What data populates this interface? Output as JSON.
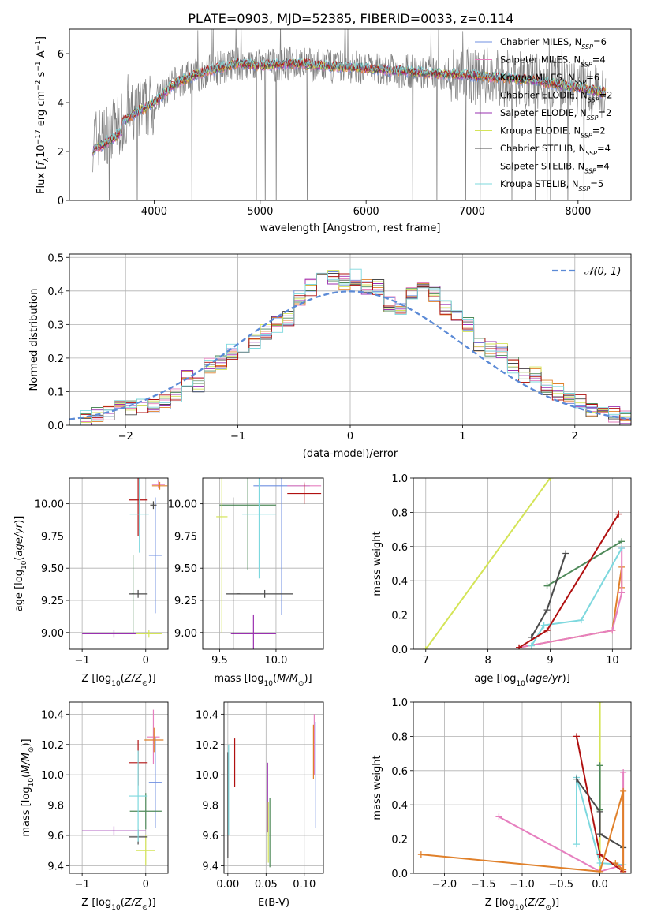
{
  "figure": {
    "title": "PLATE=0903, MJD=52385, FIBERID=0033, z=0.114"
  },
  "chart_data": [
    {
      "type": "line",
      "id": "spectrum",
      "title": "PLATE=0903, MJD=52385, FIBERID=0033, z=0.114",
      "xlabel": "wavelength [Angstrom, rest frame]",
      "ylabel": "Flux [fλ10⁻¹⁷ erg cm⁻² s⁻¹ A⁻¹]",
      "xlim": [
        3200,
        8500
      ],
      "ylim": [
        0,
        7
      ],
      "xticks": [
        "4000",
        "5000",
        "6000",
        "7000",
        "8000"
      ],
      "yticks": [
        "0",
        "2",
        "4",
        "6"
      ],
      "grid": false,
      "legend_position": "top-right",
      "continuum": {
        "wavelength": [
          3400,
          3600,
          3800,
          4000,
          4200,
          4500,
          4800,
          5000,
          5300,
          5600,
          6000,
          6300,
          6600,
          7000,
          7300,
          7600,
          8000,
          8250
        ],
        "flux": [
          2.4,
          2.9,
          3.5,
          4.0,
          4.8,
          5.3,
          5.6,
          5.5,
          5.6,
          5.5,
          5.4,
          5.3,
          5.2,
          5.1,
          5.0,
          4.9,
          4.6,
          4.4
        ]
      },
      "series": [
        {
          "name": "Chabrier MILES, N_SSP=6",
          "color": "#6f8fe0"
        },
        {
          "name": "Salpeter MILES, N_SSP=4",
          "color": "#e67fbf"
        },
        {
          "name": "Kroupa MILES, N_SSP=6",
          "color": "#e0802a"
        },
        {
          "name": "Chabrier ELODIE, N_SSP=2",
          "color": "#4f8a5a"
        },
        {
          "name": "Salpeter ELODIE, N_SSP=2",
          "color": "#9a30b0"
        },
        {
          "name": "Kroupa ELODIE, N_SSP=2",
          "color": "#d4e457"
        },
        {
          "name": "Chabrier STELIB, N_SSP=4",
          "color": "#4a4a4a"
        },
        {
          "name": "Salpeter STELIB, N_SSP=4",
          "color": "#b01010"
        },
        {
          "name": "Kroupa STELIB, N_SSP=5",
          "color": "#7dd8de"
        }
      ],
      "legend_labels": [
        {
          "pre": "Chabrier MILES, N",
          "sub": "SSP",
          "post": "=6"
        },
        {
          "pre": "Salpeter MILES, N",
          "sub": "SSP",
          "post": "=4"
        },
        {
          "pre": "Kroupa MILES, N",
          "sub": "SSP",
          "post": "=6"
        },
        {
          "pre": "Chabrier ELODIE, N",
          "sub": "SSP",
          "post": "=2"
        },
        {
          "pre": "Salpeter ELODIE, N",
          "sub": "SSP",
          "post": "=2"
        },
        {
          "pre": "Kroupa ELODIE, N",
          "sub": "SSP",
          "post": "=2"
        },
        {
          "pre": "Chabrier STELIB, N",
          "sub": "SSP",
          "post": "=4"
        },
        {
          "pre": "Salpeter STELIB, N",
          "sub": "SSP",
          "post": "=4"
        },
        {
          "pre": "Kroupa STELIB, N",
          "sub": "SSP",
          "post": "=5"
        }
      ],
      "data_color": "#808080"
    },
    {
      "type": "line",
      "id": "residuals",
      "xlabel": "(data-model)/error",
      "ylabel": "Normed distribution",
      "xlim": [
        -2.5,
        2.5
      ],
      "ylim": [
        0,
        0.51
      ],
      "xticks": [
        "−2",
        "−1",
        "0",
        "1",
        "2"
      ],
      "yticks": [
        "0.0",
        "0.1",
        "0.2",
        "0.3",
        "0.4",
        "0.5"
      ],
      "grid": true,
      "legend_position": "top-right",
      "reference": {
        "name": "𝒩(0, 1)",
        "color": "#5b8ad6"
      },
      "bin_centers": [
        -2.45,
        -2.35,
        -2.25,
        -2.15,
        -2.05,
        -1.95,
        -1.85,
        -1.75,
        -1.65,
        -1.55,
        -1.45,
        -1.35,
        -1.25,
        -1.15,
        -1.05,
        -0.95,
        -0.85,
        -0.75,
        -0.65,
        -0.55,
        -0.45,
        -0.35,
        -0.25,
        -0.15,
        -0.05,
        0.05,
        0.15,
        0.25,
        0.35,
        0.45,
        0.55,
        0.65,
        0.75,
        0.85,
        0.95,
        1.05,
        1.15,
        1.25,
        1.35,
        1.45,
        1.55,
        1.65,
        1.75,
        1.85,
        1.95,
        2.05,
        2.15,
        2.25,
        2.35,
        2.45
      ],
      "histogram": [
        0.02,
        0.02,
        0.03,
        0.04,
        0.05,
        0.05,
        0.06,
        0.06,
        0.07,
        0.09,
        0.14,
        0.12,
        0.18,
        0.19,
        0.22,
        0.22,
        0.25,
        0.28,
        0.3,
        0.32,
        0.38,
        0.41,
        0.46,
        0.44,
        0.43,
        0.44,
        0.41,
        0.41,
        0.36,
        0.35,
        0.4,
        0.42,
        0.39,
        0.35,
        0.32,
        0.3,
        0.24,
        0.23,
        0.22,
        0.18,
        0.15,
        0.15,
        0.11,
        0.1,
        0.08,
        0.07,
        0.05,
        0.04,
        0.03,
        0.02
      ]
    },
    {
      "type": "scatter",
      "id": "age-vs-Z",
      "xlabel": "Z [log10(Z/Z⊙)]",
      "ylabel": "age [log10(age/yr)]",
      "xlim": [
        -1.2,
        0.35
      ],
      "ylim": [
        8.87,
        10.2
      ],
      "xticks": [
        "−1",
        "0"
      ],
      "yticks": [
        "9.00",
        "9.25",
        "9.50",
        "9.75",
        "10.00"
      ],
      "grid": true,
      "points": [
        {
          "color": "#6f8fe0",
          "x": 0.15,
          "xerr": 0.1,
          "y": 9.6,
          "yerr": 0.45
        },
        {
          "color": "#e67fbf",
          "x": 0.2,
          "xerr": 0.1,
          "y": 10.15,
          "yerr": 0.03
        },
        {
          "color": "#e0802a",
          "x": 0.22,
          "xerr": 0.12,
          "y": 10.14,
          "yerr": 0.03
        },
        {
          "color": "#4f8a5a",
          "x": -0.2,
          "xerr": 0.02,
          "y": 9.3,
          "yerr": 0.3
        },
        {
          "color": "#9a30b0",
          "x": -0.5,
          "xerr": 0.5,
          "y": 8.99,
          "yerr": 0.03
        },
        {
          "color": "#d4e457",
          "x": 0.05,
          "xerr": 0.2,
          "y": 8.99,
          "yerr": 0.03
        },
        {
          "color": "#4a4a4a",
          "x": -0.12,
          "xerr": 0.15,
          "y": 9.3,
          "yerr": 0.03
        },
        {
          "color": "#b01010",
          "x": -0.12,
          "xerr": 0.15,
          "y": 10.03,
          "yerr": 0.28
        },
        {
          "color": "#7dd8de",
          "x": -0.1,
          "xerr": 0.15,
          "y": 9.92,
          "yerr": 0.3
        },
        {
          "color": "#4a4a4a",
          "x": 0.12,
          "xerr": 0.05,
          "y": 9.99,
          "yerr": 0.03
        }
      ]
    },
    {
      "type": "scatter",
      "id": "age-vs-mass",
      "xlabel": "mass [log10(M/M⊙)]",
      "ylabel": "",
      "xlim": [
        9.35,
        10.42
      ],
      "ylim": [
        8.87,
        10.2
      ],
      "xticks": [
        "9.5",
        "10.0"
      ],
      "yticks": [
        "9.00",
        "9.25",
        "9.50",
        "9.75",
        "10.00"
      ],
      "grid": true,
      "points": [
        {
          "color": "#6f8fe0",
          "x": 10.05,
          "xerr": 0.25,
          "y": 10.14,
          "yerr": 1.0
        },
        {
          "color": "#e67fbf",
          "x": 10.25,
          "xerr": 0.15,
          "y": 10.14,
          "yerr": 0.03
        },
        {
          "color": "#4f8a5a",
          "x": 9.75,
          "xerr": 0.25,
          "y": 9.99,
          "yerr": 0.5
        },
        {
          "color": "#9a30b0",
          "x": 9.8,
          "xerr": 0.2,
          "y": 8.99,
          "yerr": 0.15
        },
        {
          "color": "#d4e457",
          "x": 9.52,
          "xerr": 0.05,
          "y": 9.9,
          "yerr": 0.9
        },
        {
          "color": "#4a4a4a",
          "x": 9.62,
          "xerr": 0.06,
          "y": 9.3,
          "yerr": 0.75
        },
        {
          "color": "#4a4a4a",
          "x": 9.9,
          "xerr": 0.25,
          "y": 9.3,
          "yerr": 0.03
        },
        {
          "color": "#b01010",
          "x": 10.25,
          "xerr": 0.15,
          "y": 10.08,
          "yerr": 0.08
        },
        {
          "color": "#7dd8de",
          "x": 9.85,
          "xerr": 0.15,
          "y": 9.92,
          "yerr": 0.5
        }
      ]
    },
    {
      "type": "line",
      "id": "mass-weight-vs-age",
      "xlabel": "age [log10(age/yr)]",
      "ylabel": "mass weight",
      "xlim": [
        6.8,
        10.3
      ],
      "ylim": [
        0,
        1.0
      ],
      "xticks": [
        "7",
        "8",
        "9",
        "10"
      ],
      "yticks": [
        "0.0",
        "0.2",
        "0.4",
        "0.6",
        "0.8",
        "1.0"
      ],
      "grid": true,
      "series": [
        {
          "color": "#d4e457",
          "x": [
            7.0,
            9.0
          ],
          "y": [
            0.0,
            1.0
          ]
        },
        {
          "color": "#e0802a",
          "x": [
            8.5,
            10.0,
            10.15,
            10.15
          ],
          "y": [
            0.01,
            0.11,
            0.48,
            0.36
          ]
        },
        {
          "color": "#e67fbf",
          "x": [
            8.5,
            10.0,
            10.15,
            10.15
          ],
          "y": [
            0.01,
            0.11,
            0.33,
            0.59
          ]
        },
        {
          "color": "#7dd8de",
          "x": [
            8.7,
            8.9,
            9.5,
            10.15
          ],
          "y": [
            0.02,
            0.14,
            0.17,
            0.59
          ]
        },
        {
          "color": "#4f8a5a",
          "x": [
            8.95,
            10.15
          ],
          "y": [
            0.37,
            0.63
          ]
        },
        {
          "color": "#4a4a4a",
          "x": [
            8.7,
            8.95,
            9.25
          ],
          "y": [
            0.07,
            0.23,
            0.56
          ]
        },
        {
          "color": "#b01010",
          "x": [
            8.5,
            8.95,
            10.1
          ],
          "y": [
            0.01,
            0.11,
            0.79
          ]
        }
      ]
    },
    {
      "type": "scatter",
      "id": "mass-vs-Z",
      "xlabel": "Z [log10(Z/Z⊙)]",
      "ylabel": "mass [log10(M/M⊙)]",
      "xlim": [
        -1.2,
        0.35
      ],
      "ylim": [
        9.35,
        10.48
      ],
      "xticks": [
        "−1",
        "0"
      ],
      "yticks": [
        "9.4",
        "9.6",
        "9.8",
        "10.0",
        "10.2",
        "10.4"
      ],
      "grid": true,
      "points": [
        {
          "color": "#6f8fe0",
          "x": 0.15,
          "xerr": 0.1,
          "y": 9.95,
          "yerr": 0.3
        },
        {
          "color": "#e67fbf",
          "x": 0.12,
          "xerr": 0.1,
          "y": 10.25,
          "yerr": 0.18
        },
        {
          "color": "#e0802a",
          "x": 0.13,
          "xerr": 0.15,
          "y": 10.23,
          "yerr": 0.08
        },
        {
          "color": "#4f8a5a",
          "x": 0.0,
          "xerr": 0.25,
          "y": 9.76,
          "yerr": 0.12
        },
        {
          "color": "#9a30b0",
          "x": -0.5,
          "xerr": 0.5,
          "y": 9.63,
          "yerr": 0.03
        },
        {
          "color": "#d4e457",
          "x": 0.0,
          "xerr": 0.15,
          "y": 9.5,
          "yerr": 0.1
        },
        {
          "color": "#4a4a4a",
          "x": -0.12,
          "xerr": 0.15,
          "y": 9.59,
          "yerr": 0.05
        },
        {
          "color": "#b01010",
          "x": -0.12,
          "xerr": 0.15,
          "y": 10.08,
          "yerr": 0.15
        },
        {
          "color": "#7dd8de",
          "x": -0.12,
          "xerr": 0.15,
          "y": 9.86,
          "yerr": 0.3
        }
      ]
    },
    {
      "type": "scatter",
      "id": "mass-vs-ebv",
      "xlabel": "E(B-V)",
      "ylabel": "",
      "xlim": [
        -0.005,
        0.125
      ],
      "ylim": [
        9.35,
        10.48
      ],
      "xticks": [
        "0.00",
        "0.05",
        "0.10"
      ],
      "yticks": [
        "9.4",
        "9.6",
        "9.8",
        "10.0",
        "10.2",
        "10.4"
      ],
      "grid": true,
      "points": [
        {
          "color": "#6f8fe0",
          "x": 0.115,
          "y": 10.0,
          "yerr": 0.35
        },
        {
          "color": "#e67fbf",
          "x": 0.113,
          "y": 10.2,
          "yerr": 0.2
        },
        {
          "color": "#e0802a",
          "x": 0.112,
          "y": 10.15,
          "yerr": 0.18
        },
        {
          "color": "#4f8a5a",
          "x": 0.055,
          "y": 9.62,
          "yerr": 0.23
        },
        {
          "color": "#9a30b0",
          "x": 0.052,
          "y": 9.85,
          "yerr": 0.23
        },
        {
          "color": "#d4e457",
          "x": 0.053,
          "y": 9.62,
          "yerr": 0.2
        },
        {
          "color": "#4a4a4a",
          "x": 0.0,
          "y": 9.8,
          "yerr": 0.35
        },
        {
          "color": "#b01010",
          "x": 0.009,
          "y": 10.08,
          "yerr": 0.16
        },
        {
          "color": "#7dd8de",
          "x": 0.001,
          "y": 9.9,
          "yerr": 0.3
        }
      ]
    },
    {
      "type": "line",
      "id": "mass-weight-vs-Z",
      "xlabel": "Z [log10(Z/Z⊙)]",
      "ylabel": "mass weight",
      "xlim": [
        -2.4,
        0.4
      ],
      "ylim": [
        0,
        1.0
      ],
      "xticks": [
        "−2.0",
        "−1.5",
        "−1.0",
        "−0.5",
        "0.0"
      ],
      "yticks": [
        "0.0",
        "0.2",
        "0.4",
        "0.6",
        "0.8",
        "1.0"
      ],
      "grid": true,
      "series": [
        {
          "color": "#d4e457",
          "x": [
            0.0,
            0.0
          ],
          "y": [
            0.0,
            1.0
          ]
        },
        {
          "color": "#e67fbf",
          "x": [
            -1.3,
            0.0,
            0.3,
            0.3
          ],
          "y": [
            0.33,
            0.01,
            0.05,
            0.59
          ]
        },
        {
          "color": "#4f8a5a",
          "x": [
            0.0,
            0.0
          ],
          "y": [
            0.37,
            0.63
          ]
        },
        {
          "color": "#7dd8de",
          "x": [
            -0.3,
            -0.3,
            0.0,
            0.3
          ],
          "y": [
            0.17,
            0.56,
            0.06,
            0.05
          ]
        },
        {
          "color": "#4a4a4a",
          "x": [
            -0.3,
            0.0,
            0.0,
            0.3
          ],
          "y": [
            0.55,
            0.36,
            0.23,
            0.15
          ]
        },
        {
          "color": "#b01010",
          "x": [
            -0.3,
            0.0,
            0.3
          ],
          "y": [
            0.8,
            0.11,
            0.01
          ]
        },
        {
          "color": "#e0802a",
          "x": [
            -2.3,
            0.0,
            0.3,
            0.3,
            0.2
          ],
          "y": [
            0.11,
            0.01,
            0.48,
            0.02,
            0.06
          ]
        }
      ]
    }
  ]
}
